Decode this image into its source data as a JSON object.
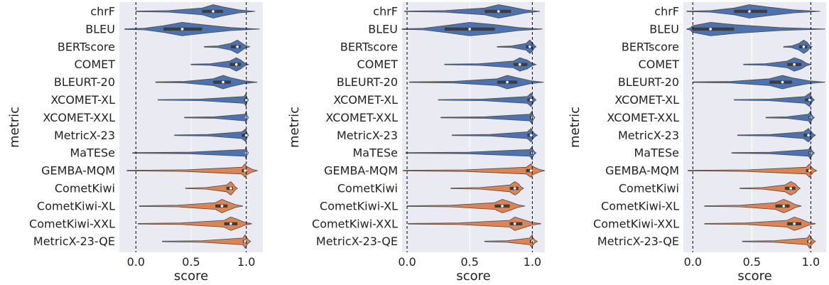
{
  "colors": {
    "reference_based": "#4c72b0",
    "quality_estimation": "#dd8452",
    "panel_background": "#eaeaf2",
    "gridline": "#ffffff",
    "reference_line": "#000000"
  },
  "chart_data": [
    {
      "type": "violin",
      "xlabel": "score",
      "ylabel": "metric",
      "xlim": [
        -0.15,
        1.15
      ],
      "xticks": [
        "0.0",
        "0.5",
        "1.0"
      ],
      "grid": true,
      "reference_lines": [
        0.0,
        1.0
      ],
      "categories": [
        "chrF",
        "BLEU",
        "BERTscore",
        "COMET",
        "BLEURT-20",
        "XCOMET-XL",
        "XCOMET-XXL",
        "MetricX-23",
        "MaTESe",
        "GEMBA-MQM",
        "CometKiwi",
        "CometKiwi-XL",
        "CometKiwi-XXL",
        "MetricX-23-QE"
      ],
      "groups": [
        "ref",
        "ref",
        "ref",
        "ref",
        "ref",
        "ref",
        "ref",
        "ref",
        "ref",
        "qe",
        "qe",
        "qe",
        "qe",
        "qe"
      ],
      "min": [
        0.0,
        -0.1,
        0.62,
        0.5,
        0.18,
        0.2,
        0.44,
        0.35,
        -0.03,
        -0.08,
        0.45,
        0.03,
        0.02,
        0.24
      ],
      "q1": [
        0.6,
        0.25,
        0.86,
        0.85,
        0.7,
        0.98,
        0.99,
        0.96,
        0.99,
        0.96,
        0.82,
        0.72,
        0.8,
        0.97
      ],
      "median": [
        0.7,
        0.42,
        0.92,
        0.91,
        0.79,
        1.0,
        1.0,
        1.0,
        1.0,
        0.99,
        0.86,
        0.78,
        0.86,
        0.99
      ],
      "q3": [
        0.79,
        0.6,
        0.95,
        0.95,
        0.86,
        1.0,
        1.0,
        1.0,
        1.0,
        1.0,
        0.88,
        0.83,
        0.92,
        1.0
      ],
      "max": [
        1.08,
        1.12,
        1.03,
        1.02,
        1.1,
        1.02,
        1.02,
        1.02,
        1.02,
        1.1,
        0.92,
        0.97,
        1.05,
        1.04
      ]
    },
    {
      "type": "violin",
      "xlabel": "score",
      "ylabel": "metric",
      "xlim": [
        -0.04,
        1.1
      ],
      "xticks": [
        "0.0",
        "0.5",
        "1.0"
      ],
      "grid": true,
      "reference_lines": [
        0.0,
        1.0
      ],
      "categories": [
        "chrF",
        "BLEU",
        "BERTscore",
        "COMET",
        "BLEURT-20",
        "XCOMET-XL",
        "XCOMET-XXL",
        "MetricX-23",
        "MaTESe",
        "GEMBA-MQM",
        "CometKiwi",
        "CometKiwi-XL",
        "CometKiwi-XXL",
        "MetricX-23-QE"
      ],
      "groups": [
        "ref",
        "ref",
        "ref",
        "ref",
        "ref",
        "ref",
        "ref",
        "ref",
        "ref",
        "qe",
        "qe",
        "qe",
        "qe",
        "qe"
      ],
      "min": [
        -0.02,
        -0.04,
        0.72,
        0.3,
        0.02,
        0.25,
        0.27,
        0.36,
        -0.01,
        -0.03,
        0.35,
        0.0,
        0.01,
        0.62
      ],
      "q1": [
        0.62,
        0.3,
        0.95,
        0.85,
        0.72,
        0.96,
        0.98,
        0.96,
        0.98,
        0.95,
        0.82,
        0.7,
        0.82,
        0.98
      ],
      "median": [
        0.73,
        0.5,
        0.98,
        0.9,
        0.8,
        0.99,
        1.0,
        0.99,
        1.0,
        0.99,
        0.86,
        0.76,
        0.86,
        1.0
      ],
      "q3": [
        0.83,
        0.7,
        1.0,
        0.96,
        0.88,
        1.0,
        1.0,
        1.0,
        1.0,
        1.0,
        0.89,
        0.82,
        0.92,
        1.0
      ],
      "max": [
        1.06,
        1.08,
        1.03,
        1.03,
        1.09,
        1.03,
        1.02,
        1.04,
        1.03,
        1.1,
        0.93,
        0.94,
        1.07,
        1.04
      ]
    },
    {
      "type": "violin",
      "xlabel": "score",
      "ylabel": "metric",
      "xlim": [
        -0.08,
        1.13
      ],
      "xticks": [
        "0.0",
        "0.5",
        "1.0"
      ],
      "grid": true,
      "reference_lines": [
        0.0,
        1.0
      ],
      "categories": [
        "chrF",
        "BLEU",
        "BERTscore",
        "COMET",
        "BLEURT-20",
        "XCOMET-XL",
        "XCOMET-XXL",
        "MetricX-23",
        "MaTESe",
        "GEMBA-MQM",
        "CometKiwi",
        "CometKiwi-XL",
        "CometKiwi-XXL",
        "MetricX-23-QE"
      ],
      "groups": [
        "ref",
        "ref",
        "ref",
        "ref",
        "ref",
        "ref",
        "ref",
        "ref",
        "ref",
        "qe",
        "qe",
        "qe",
        "qe",
        "qe"
      ],
      "min": [
        -0.05,
        -0.05,
        0.77,
        0.43,
        0.0,
        0.35,
        0.62,
        0.38,
        0.33,
        -0.04,
        0.4,
        0.1,
        0.1,
        0.42
      ],
      "q1": [
        0.35,
        0.0,
        0.9,
        0.8,
        0.65,
        0.95,
        0.98,
        0.94,
        0.98,
        0.96,
        0.78,
        0.7,
        0.8,
        0.97
      ],
      "median": [
        0.48,
        0.15,
        0.94,
        0.86,
        0.76,
        0.99,
        1.0,
        0.98,
        1.0,
        0.99,
        0.83,
        0.77,
        0.86,
        0.99
      ],
      "q3": [
        0.63,
        0.35,
        0.97,
        0.92,
        0.84,
        1.0,
        1.0,
        1.0,
        1.0,
        1.0,
        0.87,
        0.82,
        0.92,
        1.0
      ],
      "max": [
        1.08,
        1.12,
        1.01,
        1.0,
        1.12,
        1.03,
        1.03,
        1.04,
        1.03,
        1.05,
        0.91,
        0.92,
        1.04,
        1.04
      ]
    }
  ]
}
